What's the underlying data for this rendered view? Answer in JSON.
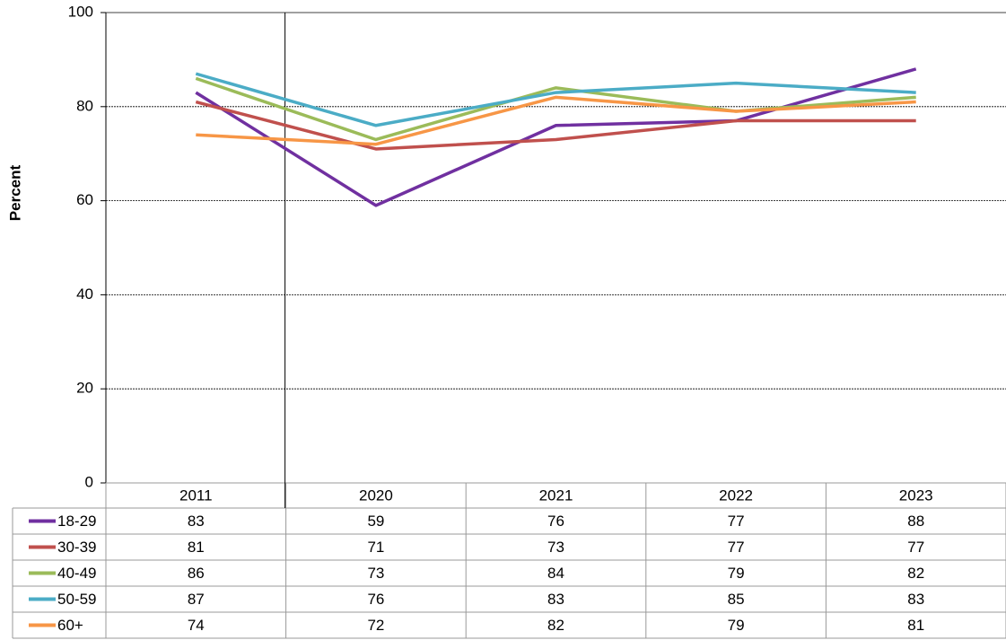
{
  "chart_data": {
    "type": "line",
    "ylabel": "Percent",
    "categories": [
      "2011",
      "2020",
      "2021",
      "2022",
      "2023"
    ],
    "series": [
      {
        "name": "18-29",
        "color": "#7030a0",
        "values": [
          83,
          59,
          76,
          77,
          88
        ]
      },
      {
        "name": "30-39",
        "color": "#c0504d",
        "values": [
          81,
          71,
          73,
          77,
          77
        ]
      },
      {
        "name": "40-49",
        "color": "#9bbb59",
        "values": [
          86,
          73,
          84,
          79,
          82
        ]
      },
      {
        "name": "50-59",
        "color": "#4bacc6",
        "values": [
          87,
          76,
          83,
          85,
          83
        ]
      },
      {
        "name": "60+",
        "color": "#f79646",
        "values": [
          74,
          72,
          82,
          79,
          81
        ]
      }
    ],
    "ylim": [
      0,
      100
    ],
    "yticks": [
      0,
      20,
      40,
      60,
      80,
      100
    ],
    "grid": true
  }
}
